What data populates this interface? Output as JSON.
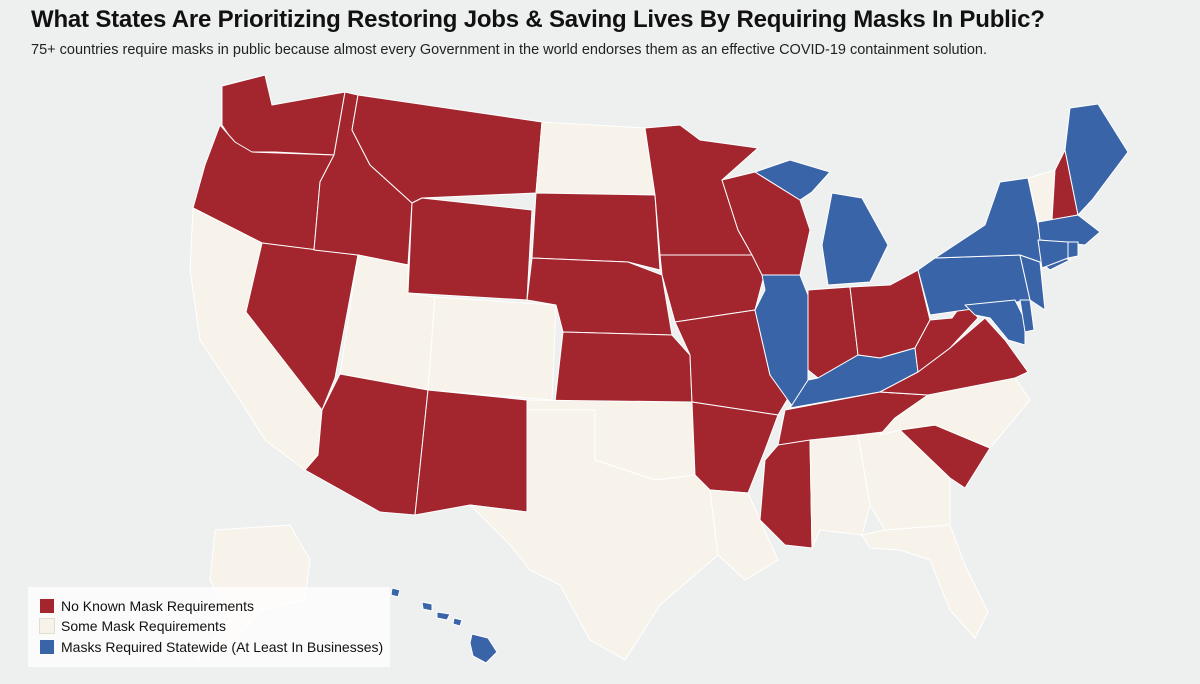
{
  "title": "What States Are Prioritizing Restoring Jobs & Saving Lives By Requiring Masks In Public?",
  "subtitle": "75+ countries require masks in public because almost every Government in the world endorses them as an effective COVID-19 containment solution.",
  "colors": {
    "none": "#a3262f",
    "some": "#f7f3ea",
    "required": "#3a64a8",
    "background": "#eef0ef"
  },
  "legend": [
    {
      "key": "none",
      "label": "No Known Mask Requirements"
    },
    {
      "key": "some",
      "label": "Some Mask Requirements"
    },
    {
      "key": "required",
      "label": "Masks Required Statewide (At Least In Businesses)"
    }
  ],
  "states": {
    "WA": "none",
    "OR": "none",
    "CA": "some",
    "NV": "none",
    "ID": "none",
    "MT": "none",
    "WY": "none",
    "UT": "some",
    "AZ": "none",
    "CO": "some",
    "NM": "none",
    "ND": "some",
    "SD": "none",
    "NE": "none",
    "KS": "none",
    "OK": "some",
    "TX": "some",
    "MN": "none",
    "IA": "none",
    "MO": "none",
    "AR": "none",
    "LA": "some",
    "WI": "none",
    "IL": "required",
    "MI": "required",
    "IN": "none",
    "OH": "none",
    "KY": "required",
    "TN": "none",
    "MS": "none",
    "AL": "some",
    "GA": "some",
    "FL": "some",
    "SC": "none",
    "NC": "some",
    "VA": "none",
    "WV": "none",
    "MD": "required",
    "DE": "required",
    "PA": "required",
    "NJ": "required",
    "NY": "required",
    "CT": "required",
    "RI": "required",
    "MA": "required",
    "VT": "some",
    "NH": "none",
    "ME": "required",
    "AK": "some",
    "HI": "required"
  }
}
